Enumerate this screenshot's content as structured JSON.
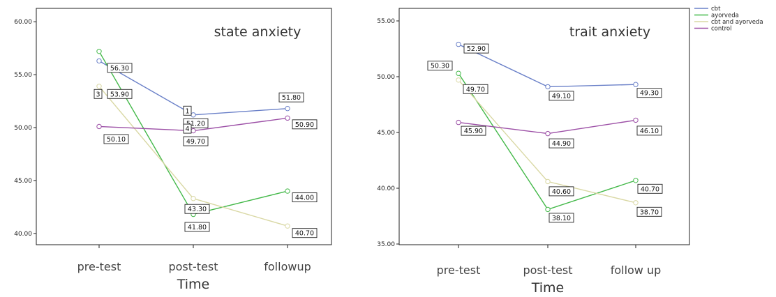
{
  "chart_data": [
    {
      "type": "line",
      "title": "state anxiety",
      "xlabel": "Time",
      "ylabel": "",
      "categories": [
        "pre-test",
        "post-test",
        "followup"
      ],
      "ylim": [
        39,
        61
      ],
      "yticks": [
        "40.00",
        "45.00",
        "50.00",
        "55.00",
        "60.00"
      ],
      "yticks_values": [
        40,
        45,
        50,
        55,
        60
      ],
      "series": [
        {
          "name": "cbt",
          "color": "#6a80c8",
          "values": [
            56.3,
            51.2,
            51.8
          ]
        },
        {
          "name": "ayorveda",
          "color": "#44b94a",
          "values": [
            57.2,
            41.8,
            44.0
          ]
        },
        {
          "name": "cbt and ayorveda",
          "color": "#d9d8a4",
          "values": [
            53.9,
            43.3,
            40.7
          ]
        },
        {
          "name": "control",
          "color": "#9c4fa6",
          "values": [
            50.1,
            49.7,
            50.9
          ]
        }
      ],
      "labels": [
        {
          "text": "56.30",
          "cat": 0,
          "y": 56.3
        },
        {
          "text": "53.90",
          "cat": 0,
          "y": 53.9
        },
        {
          "text": "3",
          "cat": 0,
          "y": 53.9
        },
        {
          "text": "50.10",
          "cat": 0,
          "y": 50.1
        },
        {
          "text": "1",
          "cat": 1,
          "y": 51.2
        },
        {
          "text": "51.20",
          "cat": 1,
          "y": 51.2
        },
        {
          "text": "4",
          "cat": 1,
          "y": 49.7
        },
        {
          "text": "49.70",
          "cat": 1,
          "y": 49.7
        },
        {
          "text": "43.30",
          "cat": 1,
          "y": 43.3
        },
        {
          "text": "41.80",
          "cat": 1,
          "y": 41.8
        },
        {
          "text": "51.80",
          "cat": 2,
          "y": 51.8
        },
        {
          "text": "50.90",
          "cat": 2,
          "y": 50.9
        },
        {
          "text": "44.00",
          "cat": 2,
          "y": 44.0
        },
        {
          "text": "40.70",
          "cat": 2,
          "y": 40.7
        }
      ]
    },
    {
      "type": "line",
      "title": "trait anxiety",
      "xlabel": "Time",
      "ylabel": "",
      "categories": [
        "pre-test",
        "post-test",
        "follow up"
      ],
      "ylim": [
        34.5,
        56
      ],
      "yticks": [
        "35.00",
        "40.00",
        "45.00",
        "50.00",
        "55.00"
      ],
      "yticks_values": [
        35,
        40,
        45,
        50,
        55
      ],
      "series": [
        {
          "name": "cbt",
          "color": "#6a80c8",
          "values": [
            52.9,
            49.1,
            49.3
          ]
        },
        {
          "name": "ayorveda",
          "color": "#44b94a",
          "values": [
            50.3,
            38.1,
            40.7
          ]
        },
        {
          "name": "cbt and ayorveda",
          "color": "#d9d8a4",
          "values": [
            49.7,
            40.6,
            38.7
          ]
        },
        {
          "name": "control",
          "color": "#9c4fa6",
          "values": [
            45.9,
            44.9,
            46.1
          ]
        }
      ],
      "legend": "top-right",
      "labels": [
        {
          "text": "52.90",
          "cat": 0,
          "y": 52.9
        },
        {
          "text": "50.30",
          "cat": 0,
          "y": 50.3
        },
        {
          "text": "49.70",
          "cat": 0,
          "y": 49.7
        },
        {
          "text": "45.90",
          "cat": 0,
          "y": 45.9
        },
        {
          "text": "49.10",
          "cat": 1,
          "y": 49.1
        },
        {
          "text": "44.90",
          "cat": 1,
          "y": 44.9
        },
        {
          "text": "40.60",
          "cat": 1,
          "y": 40.6
        },
        {
          "text": "38.10",
          "cat": 1,
          "y": 38.1
        },
        {
          "text": "49.30",
          "cat": 2,
          "y": 49.3
        },
        {
          "text": "46.10",
          "cat": 2,
          "y": 46.1
        },
        {
          "text": "40.70",
          "cat": 2,
          "y": 40.7
        },
        {
          "text": "38.70",
          "cat": 2,
          "y": 38.7
        }
      ]
    }
  ]
}
